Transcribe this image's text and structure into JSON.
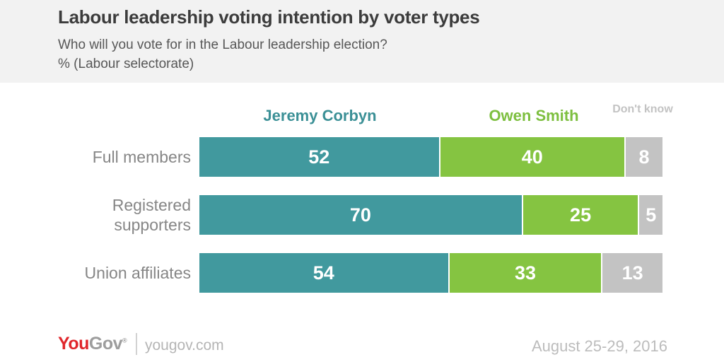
{
  "header": {
    "title": "Labour leadership voting intention by voter types",
    "subtitle_line1": "Who will you vote for in the Labour leadership election?",
    "subtitle_line2": "% (Labour selectorate)"
  },
  "chart_data": {
    "type": "bar",
    "orientation": "horizontal",
    "stacked": true,
    "unit": "%",
    "title": "Labour leadership voting intention by voter types",
    "subtitle": "Who will you vote for in the Labour leadership election? % (Labour selectorate)",
    "categories": [
      "Full members",
      "Registered supporters",
      "Union affiliates"
    ],
    "series": [
      {
        "name": "Jeremy Corbyn",
        "color": "#41999e",
        "legend_color": "#3b9096",
        "values": [
          52,
          70,
          54
        ]
      },
      {
        "name": "Owen Smith",
        "color": "#85c441",
        "legend_color": "#7dbf3f",
        "values": [
          40,
          25,
          33
        ]
      },
      {
        "name": "Don't know",
        "color": "#c3c3c3",
        "legend_color": "#c3c3c3",
        "values": [
          8,
          5,
          13
        ]
      }
    ],
    "xlim": [
      0,
      100
    ],
    "legend_position": "top",
    "value_labels": "inside-white",
    "grid": false
  },
  "footer": {
    "logo_you": "You",
    "logo_gov": "Gov",
    "logo_mark": "®",
    "site": "yougov.com",
    "date_range": "August 25-29, 2016"
  }
}
